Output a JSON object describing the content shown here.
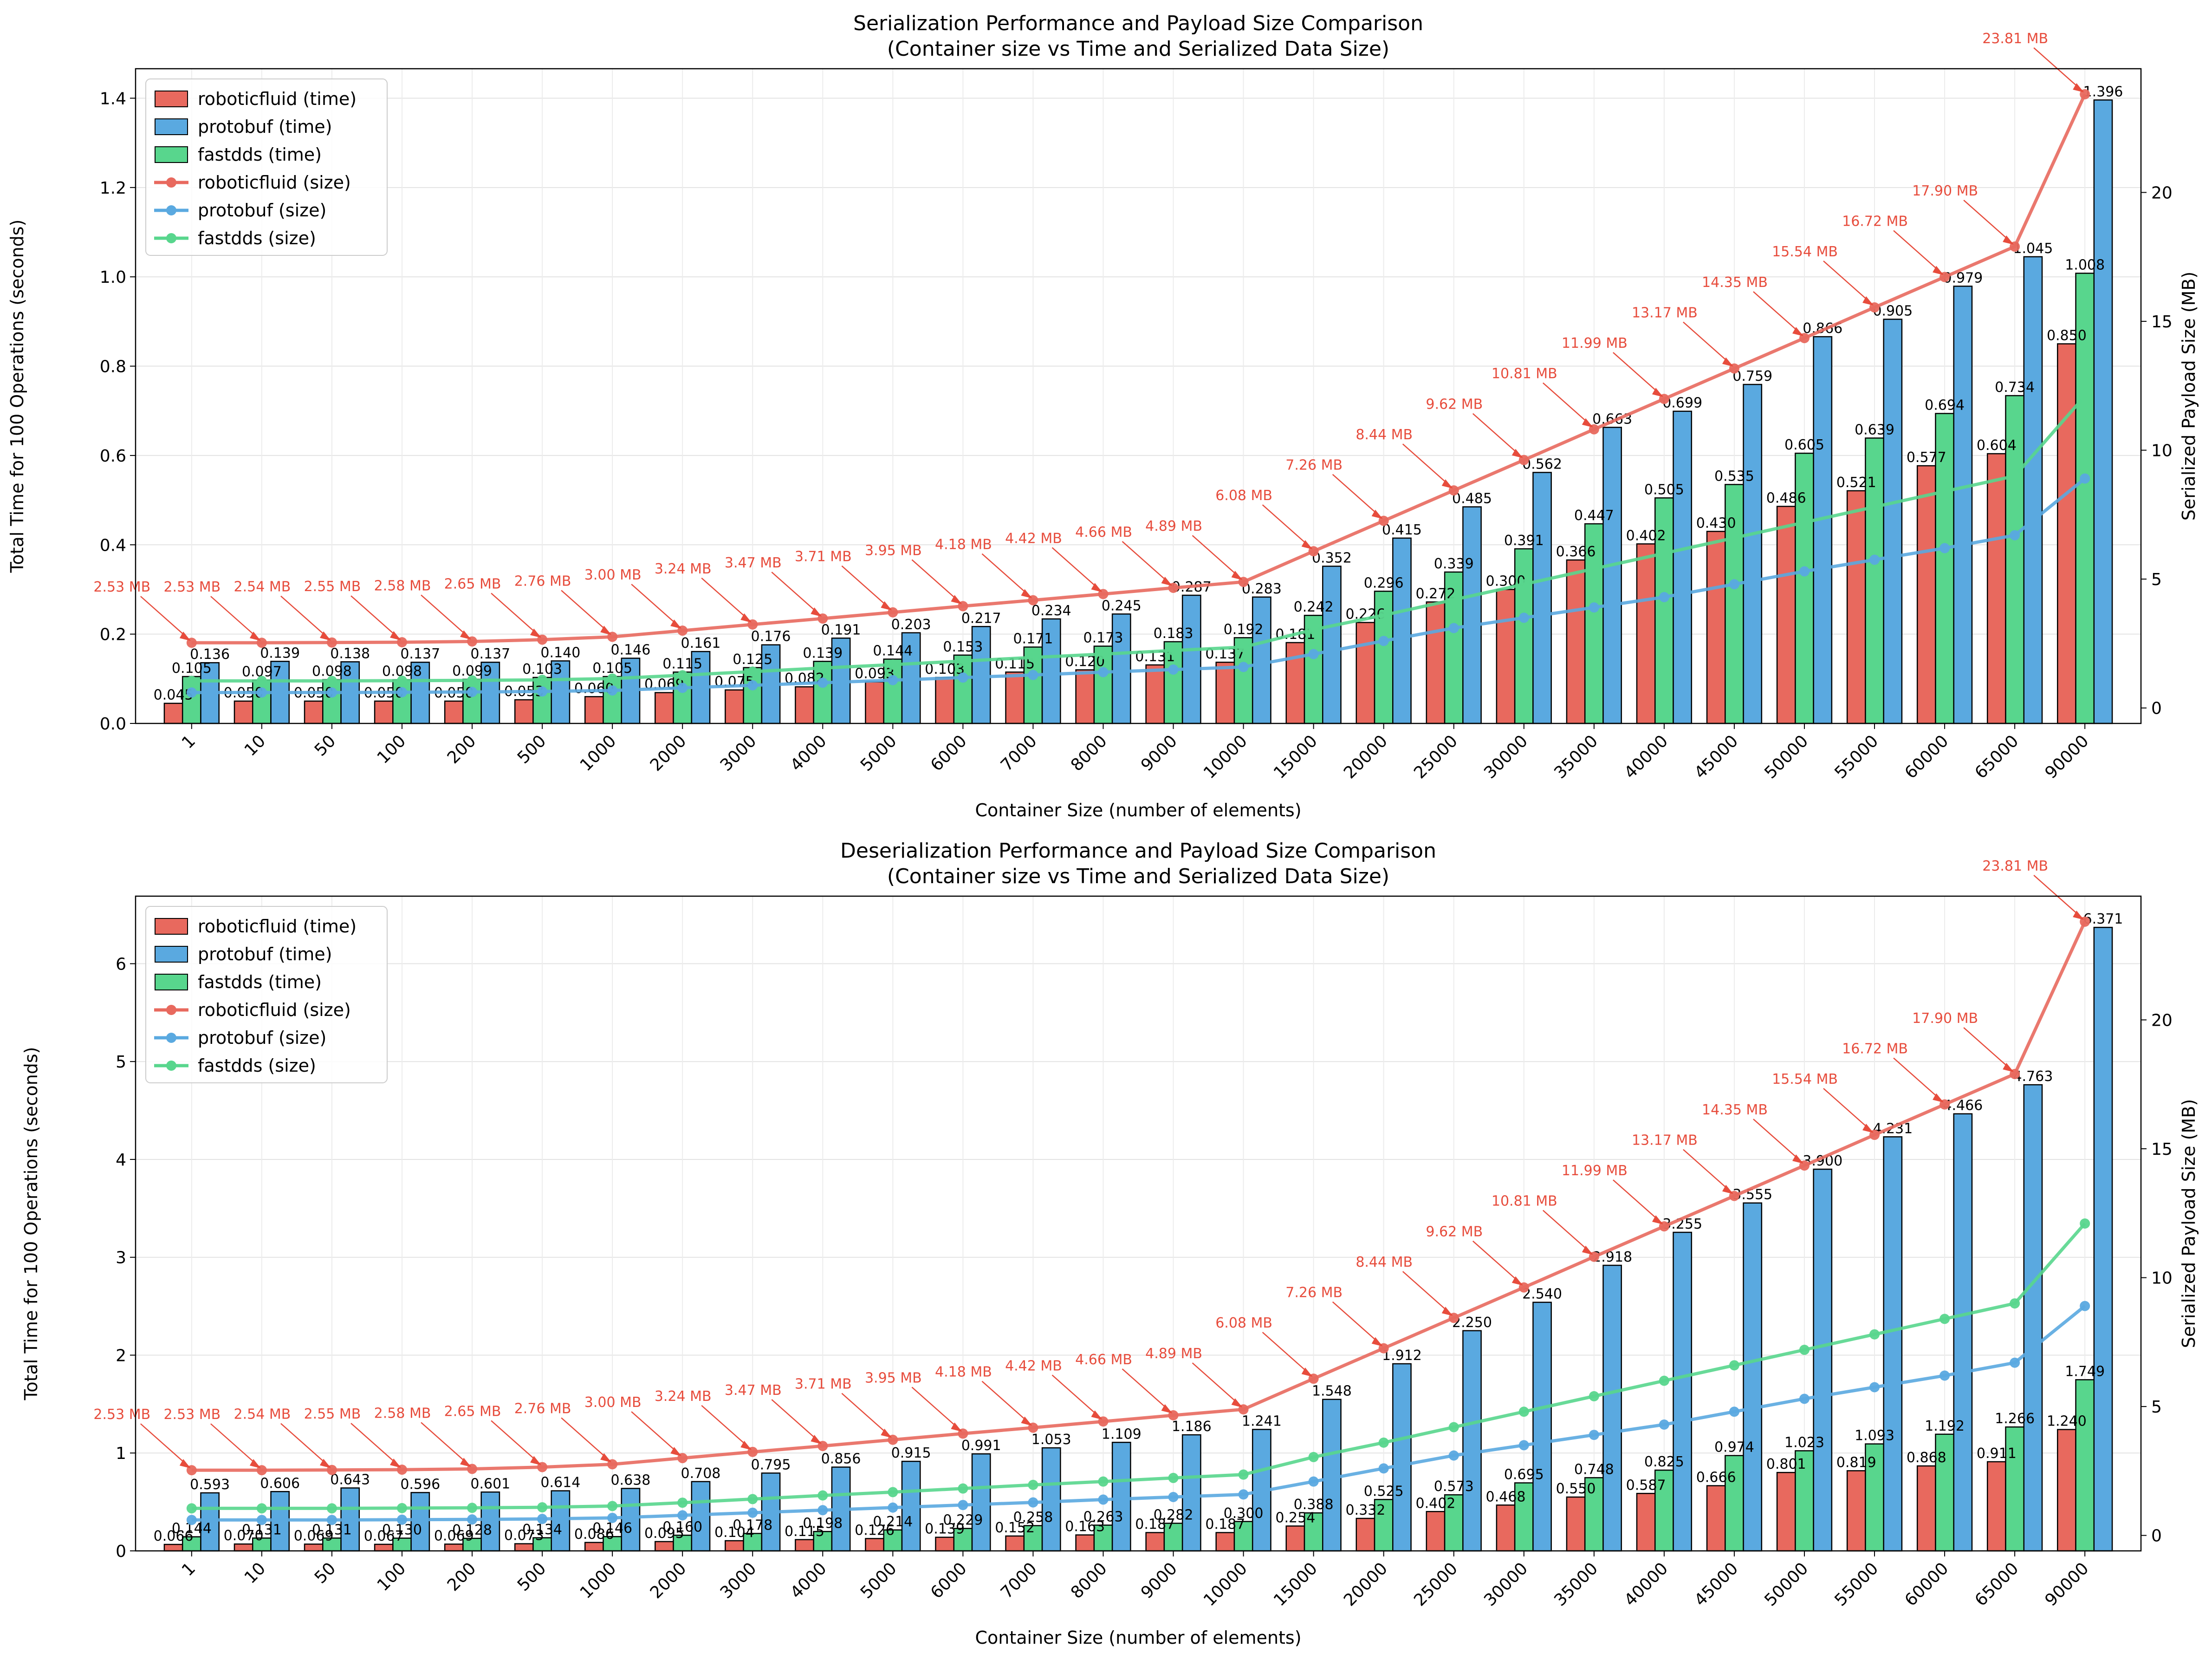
{
  "colors": {
    "roboticfluid": "#e8695e",
    "protobuf": "#5aa9e0",
    "fastdds": "#58d68d",
    "annotation": "#e74c3c"
  },
  "chart_data": [
    {
      "type": "bar+line",
      "title_line1": "Serialization Performance and Payload Size Comparison",
      "title_line2": "(Container size vs Time and Serialized Data Size)",
      "xlabel": "Container Size (number of elements)",
      "ylabel": "Total Time for 100 Operations (seconds)",
      "y2label": "Serialized Payload Size (MB)",
      "ylim": [
        0,
        1.466
      ],
      "y2lim": [
        -0.6,
        24.8
      ],
      "yticks": [
        "0.0",
        "0.2",
        "0.4",
        "0.6",
        "0.8",
        "1.0",
        "1.2",
        "1.4"
      ],
      "y2ticks": [
        "0",
        "5",
        "10",
        "15",
        "20"
      ],
      "grid": true,
      "legend_position": "upper-left",
      "categories": [
        "1",
        "10",
        "50",
        "100",
        "200",
        "500",
        "1000",
        "2000",
        "3000",
        "4000",
        "5000",
        "6000",
        "7000",
        "8000",
        "9000",
        "10000",
        "15000",
        "20000",
        "25000",
        "30000",
        "35000",
        "40000",
        "45000",
        "50000",
        "55000",
        "60000",
        "65000",
        "90000"
      ],
      "bar_series": [
        {
          "name": "roboticfluid (time)",
          "color_key": "roboticfluid",
          "values": [
            0.045,
            0.05,
            0.05,
            0.05,
            0.05,
            0.053,
            0.06,
            0.069,
            0.075,
            0.082,
            0.093,
            0.103,
            0.115,
            0.12,
            0.131,
            0.137,
            0.181,
            0.226,
            0.272,
            0.3,
            0.366,
            0.402,
            0.43,
            0.486,
            0.521,
            0.577,
            0.604,
            0.85
          ],
          "labels": [
            "0.045",
            "0.050",
            "0.050",
            "0.050",
            "0.050",
            "0.053",
            "0.060",
            "0.069",
            "0.075",
            "0.082",
            "0.093",
            "0.103",
            "0.115",
            "0.120",
            "0.131",
            "0.137",
            "0.181",
            "0.226",
            "0.272",
            "0.300",
            "0.366",
            "0.402",
            "0.430",
            "0.486",
            "0.521",
            "0.577",
            "0.604",
            "0.850"
          ]
        },
        {
          "name": "fastdds (time)",
          "color_key": "fastdds",
          "values": [
            0.105,
            0.097,
            0.098,
            0.098,
            0.099,
            0.103,
            0.105,
            0.115,
            0.125,
            0.139,
            0.144,
            0.153,
            0.171,
            0.173,
            0.183,
            0.192,
            0.242,
            0.296,
            0.339,
            0.391,
            0.447,
            0.505,
            0.535,
            0.605,
            0.639,
            0.694,
            0.734,
            1.008
          ],
          "labels": [
            "0.105",
            "0.097",
            "0.098",
            "0.098",
            "0.099",
            "0.103",
            "0.105",
            "0.115",
            "0.125",
            "0.139",
            "0.144",
            "0.153",
            "0.171",
            "0.173",
            "0.183",
            "0.192",
            "0.242",
            "0.296",
            "0.339",
            "0.391",
            "0.447",
            "0.505",
            "0.535",
            "0.605",
            "0.639",
            "0.694",
            "0.734",
            "1.008"
          ]
        },
        {
          "name": "protobuf (time)",
          "color_key": "protobuf",
          "values": [
            0.136,
            0.139,
            0.138,
            0.137,
            0.137,
            0.14,
            0.146,
            0.161,
            0.176,
            0.191,
            0.203,
            0.217,
            0.234,
            0.245,
            0.287,
            0.283,
            0.352,
            0.415,
            0.485,
            0.562,
            0.663,
            0.699,
            0.759,
            0.866,
            0.905,
            0.979,
            1.045,
            1.396
          ],
          "labels": [
            "0.136",
            "0.139",
            "0.138",
            "0.137",
            "0.137",
            "0.140",
            "0.146",
            "0.161",
            "0.176",
            "0.191",
            "0.203",
            "0.217",
            "0.234",
            "0.245",
            "0.287",
            "0.283",
            "0.352",
            "0.415",
            "0.485",
            "0.562",
            "0.663",
            "0.699",
            "0.759",
            "0.866",
            "0.905",
            "0.979",
            "1.045",
            "1.396"
          ]
        }
      ],
      "line_series": [
        {
          "name": "roboticfluid (size)",
          "color_key": "roboticfluid",
          "annotated": true,
          "values": [
            2.53,
            2.53,
            2.54,
            2.55,
            2.58,
            2.65,
            2.76,
            3.0,
            3.24,
            3.47,
            3.71,
            3.95,
            4.18,
            4.42,
            4.66,
            4.89,
            6.08,
            7.26,
            8.44,
            9.62,
            10.81,
            11.99,
            13.17,
            14.35,
            15.54,
            16.72,
            17.9,
            23.81
          ]
        },
        {
          "name": "protobuf (size)",
          "color_key": "protobuf",
          "values": [
            0.6,
            0.6,
            0.6,
            0.61,
            0.62,
            0.64,
            0.68,
            0.78,
            0.88,
            0.98,
            1.08,
            1.18,
            1.28,
            1.39,
            1.49,
            1.59,
            2.09,
            2.6,
            3.1,
            3.5,
            3.9,
            4.3,
            4.8,
            5.3,
            5.75,
            6.2,
            6.7,
            8.9
          ]
        },
        {
          "name": "fastdds (size)",
          "color_key": "fastdds",
          "values": [
            1.05,
            1.05,
            1.05,
            1.06,
            1.07,
            1.09,
            1.14,
            1.27,
            1.41,
            1.55,
            1.68,
            1.82,
            1.96,
            2.09,
            2.23,
            2.36,
            3.04,
            3.6,
            4.2,
            4.8,
            5.4,
            6.0,
            6.6,
            7.2,
            7.8,
            8.4,
            9.0,
            12.1
          ]
        }
      ],
      "annotations": [
        "2.53 MB",
        "2.53 MB",
        "2.54 MB",
        "2.55 MB",
        "2.58 MB",
        "2.65 MB",
        "2.76 MB",
        "3.00 MB",
        "3.24 MB",
        "3.47 MB",
        "3.71 MB",
        "3.95 MB",
        "4.18 MB",
        "4.42 MB",
        "4.66 MB",
        "4.89 MB",
        "6.08 MB",
        "7.26 MB",
        "8.44 MB",
        "9.62 MB",
        "10.81 MB",
        "11.99 MB",
        "13.17 MB",
        "14.35 MB",
        "15.54 MB",
        "16.72 MB",
        "17.90 MB",
        "23.81 MB"
      ]
    },
    {
      "type": "bar+line",
      "title_line1": "Deserialization Performance and Payload Size Comparison",
      "title_line2": "(Container size vs Time and Serialized Data Size)",
      "xlabel": "Container Size (number of elements)",
      "ylabel": "Total Time for 100 Operations (seconds)",
      "y2label": "Serialized Payload Size (MB)",
      "ylim": [
        0,
        6.69
      ],
      "y2lim": [
        -0.6,
        24.8
      ],
      "yticks": [
        "0",
        "1",
        "2",
        "3",
        "4",
        "5",
        "6"
      ],
      "y2ticks": [
        "0",
        "5",
        "10",
        "15",
        "20"
      ],
      "grid": true,
      "legend_position": "upper-left",
      "categories": [
        "1",
        "10",
        "50",
        "100",
        "200",
        "500",
        "1000",
        "2000",
        "3000",
        "4000",
        "5000",
        "6000",
        "7000",
        "8000",
        "9000",
        "10000",
        "15000",
        "20000",
        "25000",
        "30000",
        "35000",
        "40000",
        "45000",
        "50000",
        "55000",
        "60000",
        "65000",
        "90000"
      ],
      "bar_series": [
        {
          "name": "roboticfluid (time)",
          "color_key": "roboticfluid",
          "values": [
            0.066,
            0.07,
            0.069,
            0.067,
            0.069,
            0.073,
            0.086,
            0.095,
            0.104,
            0.115,
            0.126,
            0.139,
            0.152,
            0.163,
            0.187,
            0.187,
            0.254,
            0.332,
            0.402,
            0.468,
            0.55,
            0.587,
            0.666,
            0.801,
            0.819,
            0.868,
            0.911,
            1.24
          ],
          "labels": [
            "0.066",
            "0.070",
            "0.069",
            "0.067",
            "0.069",
            "0.073",
            "0.086",
            "0.095",
            "0.104",
            "0.115",
            "0.126",
            "0.139",
            "0.152",
            "0.163",
            "0.187",
            "0.187",
            "0.254",
            "0.332",
            "0.402",
            "0.468",
            "0.550",
            "0.587",
            "0.666",
            "0.801",
            "0.819",
            "0.868",
            "0.911",
            "1.240"
          ]
        },
        {
          "name": "fastdds (time)",
          "color_key": "fastdds",
          "values": [
            0.144,
            0.131,
            0.131,
            0.13,
            0.128,
            0.134,
            0.146,
            0.16,
            0.178,
            0.198,
            0.214,
            0.229,
            0.258,
            0.263,
            0.282,
            0.3,
            0.388,
            0.525,
            0.573,
            0.695,
            0.748,
            0.825,
            0.974,
            1.023,
            1.093,
            1.192,
            1.266,
            1.749
          ],
          "labels": [
            "0.144",
            "0.131",
            "0.131",
            "0.130",
            "0.128",
            "0.134",
            "0.146",
            "0.160",
            "0.178",
            "0.198",
            "0.214",
            "0.229",
            "0.258",
            "0.263",
            "0.282",
            "0.300",
            "0.388",
            "0.525",
            "0.573",
            "0.695",
            "0.748",
            "0.825",
            "0.974",
            "1.023",
            "1.093",
            "1.192",
            "1.266",
            "1.749"
          ]
        },
        {
          "name": "protobuf (time)",
          "color_key": "protobuf",
          "values": [
            0.593,
            0.606,
            0.643,
            0.596,
            0.601,
            0.614,
            0.638,
            0.708,
            0.795,
            0.856,
            0.915,
            0.991,
            1.053,
            1.109,
            1.186,
            1.241,
            1.548,
            1.912,
            2.25,
            2.54,
            2.918,
            3.255,
            3.555,
            3.9,
            4.231,
            4.466,
            4.763,
            6.371
          ],
          "labels": [
            "0.593",
            "0.606",
            "0.643",
            "0.596",
            "0.601",
            "0.614",
            "0.638",
            "0.708",
            "0.795",
            "0.856",
            "0.915",
            "0.991",
            "1.053",
            "1.109",
            "1.186",
            "1.241",
            "1.548",
            "1.912",
            "2.250",
            "2.540",
            "2.918",
            "3.255",
            "3.555",
            "3.900",
            "4.231",
            "4.466",
            "4.763",
            "6.371"
          ]
        }
      ],
      "line_series": [
        {
          "name": "roboticfluid (size)",
          "color_key": "roboticfluid",
          "annotated": true,
          "values": [
            2.53,
            2.53,
            2.54,
            2.55,
            2.58,
            2.65,
            2.76,
            3.0,
            3.24,
            3.47,
            3.71,
            3.95,
            4.18,
            4.42,
            4.66,
            4.89,
            6.08,
            7.26,
            8.44,
            9.62,
            10.81,
            11.99,
            13.17,
            14.35,
            15.54,
            16.72,
            17.9,
            23.81
          ]
        },
        {
          "name": "protobuf (size)",
          "color_key": "protobuf",
          "values": [
            0.6,
            0.6,
            0.6,
            0.61,
            0.62,
            0.64,
            0.68,
            0.78,
            0.88,
            0.98,
            1.08,
            1.18,
            1.28,
            1.39,
            1.49,
            1.59,
            2.09,
            2.6,
            3.1,
            3.5,
            3.9,
            4.3,
            4.8,
            5.3,
            5.75,
            6.2,
            6.7,
            8.9
          ]
        },
        {
          "name": "fastdds (size)",
          "color_key": "fastdds",
          "values": [
            1.05,
            1.05,
            1.05,
            1.06,
            1.07,
            1.09,
            1.14,
            1.27,
            1.41,
            1.55,
            1.68,
            1.82,
            1.96,
            2.09,
            2.23,
            2.36,
            3.04,
            3.6,
            4.2,
            4.8,
            5.4,
            6.0,
            6.6,
            7.2,
            7.8,
            8.4,
            9.0,
            12.1
          ]
        }
      ],
      "annotations": [
        "2.53 MB",
        "2.53 MB",
        "2.54 MB",
        "2.55 MB",
        "2.58 MB",
        "2.65 MB",
        "2.76 MB",
        "3.00 MB",
        "3.24 MB",
        "3.47 MB",
        "3.71 MB",
        "3.95 MB",
        "4.18 MB",
        "4.42 MB",
        "4.66 MB",
        "4.89 MB",
        "6.08 MB",
        "7.26 MB",
        "8.44 MB",
        "9.62 MB",
        "10.81 MB",
        "11.99 MB",
        "13.17 MB",
        "14.35 MB",
        "15.54 MB",
        "16.72 MB",
        "17.90 MB",
        "23.81 MB"
      ]
    }
  ]
}
